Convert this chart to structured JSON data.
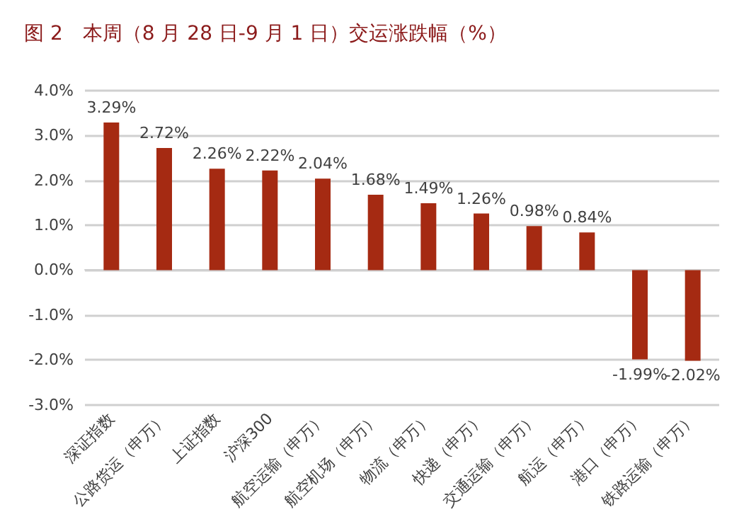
{
  "chart_data": {
    "type": "bar",
    "title": "图 2　本周（8 月 28 日-9 月 1 日）交运涨跌幅（%）",
    "categories": [
      "深证指数",
      "公路货运（申万）",
      "上证指数",
      "沪深300",
      "航空运输（申万）",
      "航空机场（申万）",
      "物流（申万）",
      "快递（申万）",
      "交通运输（申万）",
      "航运（申万）",
      "港口（申万）",
      "铁路运输（申万）"
    ],
    "values": [
      3.29,
      2.72,
      2.26,
      2.22,
      2.04,
      1.68,
      1.49,
      1.26,
      0.98,
      0.84,
      -1.99,
      -2.02
    ],
    "value_labels": [
      "3.29%",
      "2.72%",
      "2.26%",
      "2.22%",
      "2.04%",
      "1.68%",
      "1.49%",
      "1.26%",
      "0.98%",
      "0.84%",
      "-1.99%",
      "-2.02%"
    ],
    "color": "#a52a12",
    "ylim": [
      -3,
      4
    ],
    "yticks": [
      {
        "value": -3,
        "label": "-3.0%"
      },
      {
        "value": -2,
        "label": "-2.0%"
      },
      {
        "value": -1,
        "label": "-1.0%"
      },
      {
        "value": 0,
        "label": "0.0%"
      },
      {
        "value": 1,
        "label": "1.0%"
      },
      {
        "value": 2,
        "label": "2.0%"
      },
      {
        "value": 3,
        "label": "3.0%"
      },
      {
        "value": 4,
        "label": "4.0%"
      }
    ],
    "grid": "y"
  }
}
